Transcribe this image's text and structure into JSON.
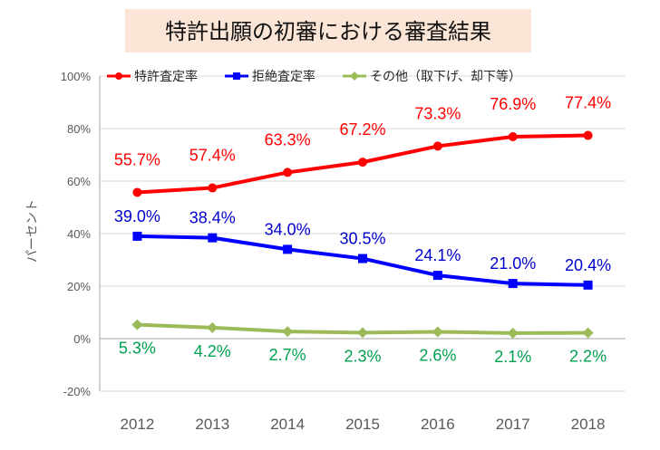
{
  "chart_data": {
    "type": "line",
    "title": "特許出願の初審における審査結果",
    "ylabel": "パーセント",
    "ylim": [
      -20,
      100
    ],
    "yticks": [
      -20,
      0,
      20,
      40,
      60,
      80,
      100
    ],
    "ytick_labels": [
      "-20%",
      "0%",
      "20%",
      "40%",
      "60%",
      "80%",
      "100%"
    ],
    "categories": [
      "2012",
      "2013",
      "2014",
      "2015",
      "2016",
      "2017",
      "2018"
    ],
    "legend_position": "top",
    "grid": true,
    "series": [
      {
        "name": "特許査定率",
        "color": "#ff0000",
        "label_color": "#ff0000",
        "marker": "circle",
        "values": [
          55.7,
          57.4,
          63.3,
          67.2,
          73.3,
          76.9,
          77.4
        ],
        "labels": [
          "55.7%",
          "57.4%",
          "63.3%",
          "67.2%",
          "73.3%",
          "76.9%",
          "77.4%"
        ]
      },
      {
        "name": "拒絶査定率",
        "color": "#0000ff",
        "label_color": "#0000cc",
        "marker": "square",
        "values": [
          39.0,
          38.4,
          34.0,
          30.5,
          24.1,
          21.0,
          20.4
        ],
        "labels": [
          "39.0%",
          "38.4%",
          "34.0%",
          "30.5%",
          "24.1%",
          "21.0%",
          "20.4%"
        ]
      },
      {
        "name": "その他（取下げ、却下等）",
        "color": "#9bbb59",
        "label_color": "#00a050",
        "marker": "diamond",
        "values": [
          5.3,
          4.2,
          2.7,
          2.3,
          2.6,
          2.1,
          2.2
        ],
        "labels": [
          "5.3%",
          "4.2%",
          "2.7%",
          "2.3%",
          "2.6%",
          "2.1%",
          "2.2%"
        ]
      }
    ]
  },
  "colors": {
    "title_bg": "#fbe5d6",
    "grid": "#d9d9d9",
    "axis": "#a6a6a6"
  }
}
